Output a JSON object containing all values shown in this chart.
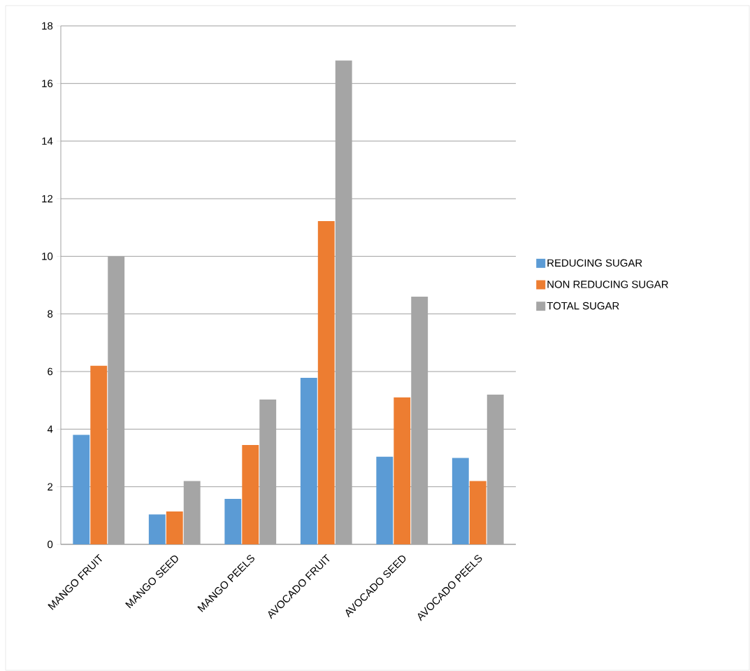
{
  "chart_data": {
    "type": "bar",
    "categories": [
      "MANGO FRUIT",
      "MANGO SEED",
      "MANGO PEELS",
      "AVOCADO FRUIT",
      "AVOCADO SEED",
      "AVOCADO PEELS"
    ],
    "series": [
      {
        "name": "REDUCING SUGAR",
        "color": "#5b9bd5",
        "values": [
          3.8,
          1.04,
          1.58,
          5.78,
          3.04,
          3.0
        ]
      },
      {
        "name": "NON REDUCING SUGAR",
        "color": "#ed7d31",
        "values": [
          6.2,
          1.14,
          3.45,
          11.22,
          5.1,
          2.2
        ]
      },
      {
        "name": "TOTAL SUGAR",
        "color": "#a5a5a5",
        "values": [
          10.0,
          2.2,
          5.03,
          16.8,
          8.6,
          5.2
        ]
      }
    ],
    "ylim": [
      0,
      18
    ],
    "yticks": [
      0,
      2,
      4,
      6,
      8,
      10,
      12,
      14,
      16,
      18
    ],
    "grid": "y",
    "legend": "right"
  }
}
